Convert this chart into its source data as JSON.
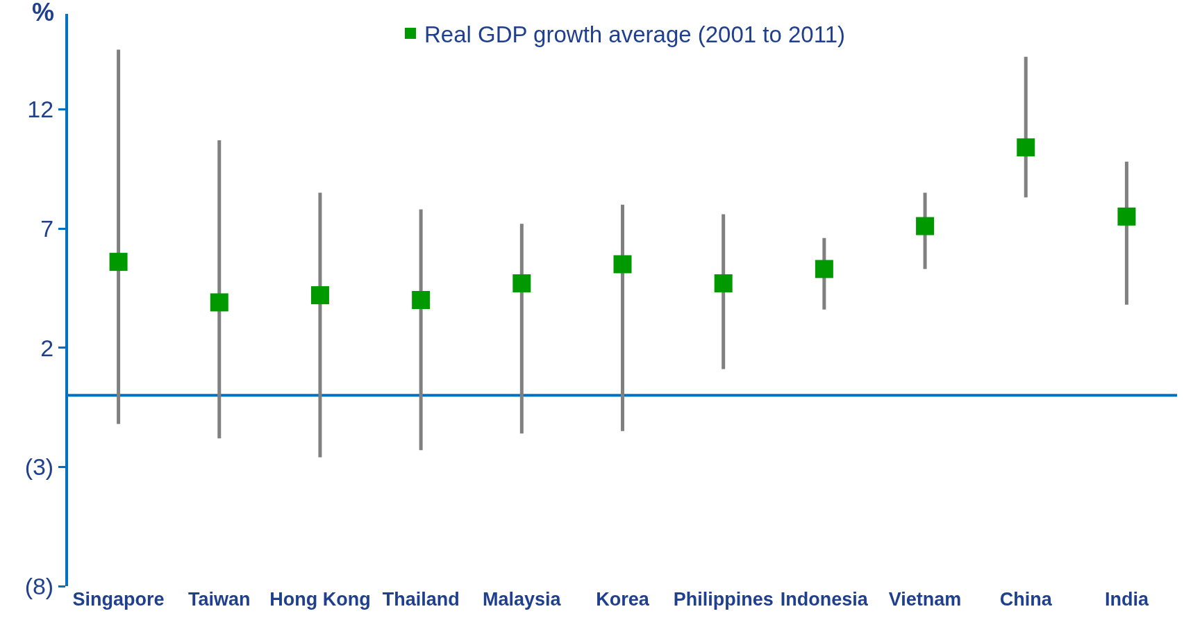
{
  "chart_data": {
    "type": "scatter",
    "ylabel": "%",
    "categories": [
      "Singapore",
      "Taiwan",
      "Hong Kong",
      "Thailand",
      "Malaysia",
      "Korea",
      "Philippines",
      "Indonesia",
      "Vietnam",
      "China",
      "India"
    ],
    "series": [
      {
        "name": "Real GDP growth average (2001 to 2011)",
        "color": "#009900",
        "values": [
          5.6,
          3.9,
          4.2,
          4.0,
          4.7,
          5.5,
          4.7,
          5.3,
          7.1,
          10.4,
          7.5
        ],
        "errors": [
          [
            -1.2,
            14.5
          ],
          [
            -1.8,
            10.7
          ],
          [
            -2.6,
            8.5
          ],
          [
            -2.3,
            7.8
          ],
          [
            -1.6,
            7.2
          ],
          [
            -1.5,
            8.0
          ],
          [
            1.1,
            7.6
          ],
          [
            3.6,
            6.6
          ],
          [
            5.3,
            8.5
          ],
          [
            8.3,
            14.2
          ],
          [
            3.8,
            9.8
          ]
        ]
      }
    ],
    "ref_lines": [
      {
        "axis": "y",
        "value": 0,
        "color": "#0070c0"
      }
    ],
    "marker": "square",
    "ylim": [
      -8,
      16
    ],
    "yticks": [
      {
        "value": -8,
        "label": "(8)"
      },
      {
        "value": -3,
        "label": "(3)"
      },
      2,
      7,
      12
    ],
    "grid": false,
    "legend": "top"
  }
}
